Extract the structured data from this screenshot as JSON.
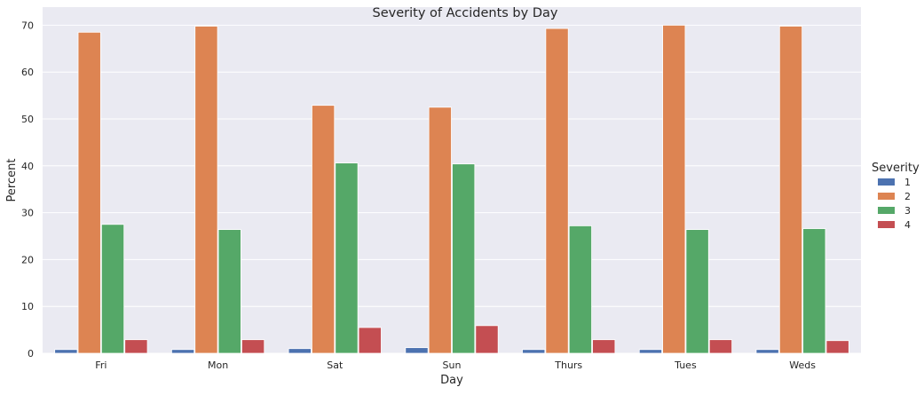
{
  "chart_data": {
    "type": "bar",
    "title": "Severity of Accidents by Day",
    "xlabel": "Day",
    "ylabel": "Percent",
    "ylim": [
      0,
      73.5
    ],
    "yticks": [
      "0",
      "10",
      "20",
      "30",
      "40",
      "50",
      "60",
      "70"
    ],
    "categories": [
      "Fri",
      "Mon",
      "Sat",
      "Sun",
      "Thurs",
      "Tues",
      "Weds"
    ],
    "legend": {
      "title": "Severity",
      "placement": "right"
    },
    "grid": true,
    "series": [
      {
        "name": "1",
        "color": "#4c72b0",
        "values": [
          0.8,
          0.8,
          1.0,
          1.2,
          0.8,
          0.8,
          0.8
        ]
      },
      {
        "name": "2",
        "color": "#dd8452",
        "values": [
          68.5,
          69.8,
          52.9,
          52.5,
          69.3,
          70.0,
          69.8
        ]
      },
      {
        "name": "3",
        "color": "#55a868",
        "values": [
          27.5,
          26.4,
          40.6,
          40.4,
          27.2,
          26.4,
          26.6
        ]
      },
      {
        "name": "4",
        "color": "#c44e52",
        "values": [
          2.9,
          2.9,
          5.5,
          5.9,
          2.9,
          2.9,
          2.7
        ]
      }
    ]
  }
}
